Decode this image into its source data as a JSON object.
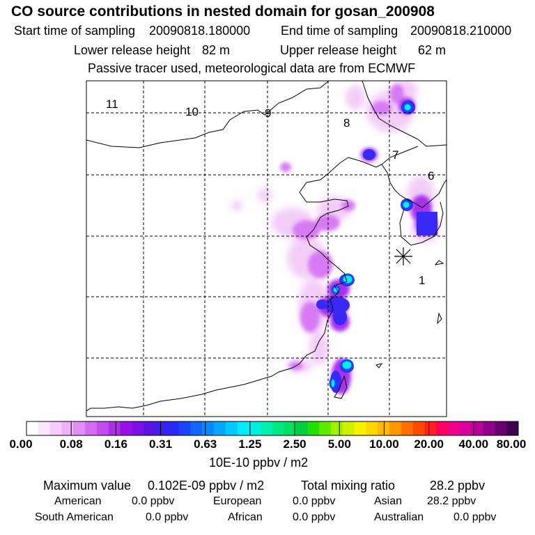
{
  "title": "CO  source contributions in nested domain for gosan_200908",
  "start_label": "Start time of sampling",
  "start_value": "20090818.180000",
  "end_label": "End time of sampling",
  "end_value": "20090818.210000",
  "lower_label": "Lower release height",
  "lower_value": "82 m",
  "upper_label": "Upper release height",
  "upper_value": "62 m",
  "tracer_note": "Passive tracer used, meteorological data are from ECMWF",
  "region_numbers": [
    "11",
    "10",
    "9",
    "8",
    "7",
    "6",
    "1"
  ],
  "colorbar": {
    "labels": [
      "0.00",
      "0.08",
      "0.16",
      "0.31",
      "0.63",
      "1.25",
      "2.50",
      "5.00",
      "10.00",
      "20.00",
      "40.00",
      "80.00"
    ],
    "units": "10E-10 ppbv / m2",
    "colors": [
      "#ffffff",
      "#fbe6fd",
      "#f6ccfb",
      "#efb0f8",
      "#e28cf5",
      "#d46af2",
      "#c44cef",
      "#b02ceb",
      "#9b10e8",
      "#7a10e6",
      "#5a14e6",
      "#3c20f0",
      "#2828f8",
      "#1a44ff",
      "#1266ff",
      "#0a88ff",
      "#06a8ff",
      "#04c8ff",
      "#00ecff",
      "#00f0e0",
      "#00f0b0",
      "#00e880",
      "#00e060",
      "#00d040",
      "#20e000",
      "#60ec00",
      "#a0f000",
      "#d0f000",
      "#f8f000",
      "#ffd800",
      "#ffb800",
      "#ff9800",
      "#ff7000",
      "#ff4800",
      "#ff2020",
      "#ff0060",
      "#f0008c",
      "#d8009c",
      "#b8009c",
      "#900088",
      "#6a0070",
      "#400050"
    ]
  },
  "stats": {
    "max_label": "Maximum value",
    "max_value": "0.102E-09 ppbv / m2",
    "total_label": "Total mixing ratio",
    "total_value": "28.2 ppbv",
    "regions": [
      {
        "name": "American",
        "value": "0.0 ppbv"
      },
      {
        "name": "European",
        "value": "0.0 ppbv"
      },
      {
        "name": "Asian",
        "value": "28.2 ppbv"
      },
      {
        "name": "South American",
        "value": "0.0 ppbv"
      },
      {
        "name": "African",
        "value": "0.0 ppbv"
      },
      {
        "name": "Australian",
        "value": "0.0 ppbv"
      }
    ]
  }
}
